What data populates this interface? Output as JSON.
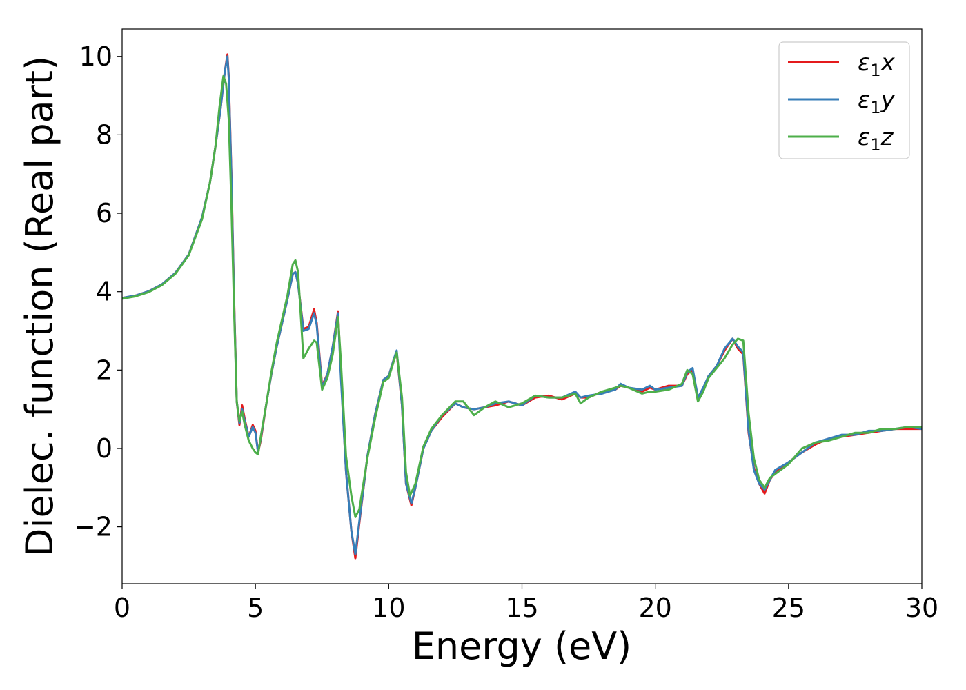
{
  "chart_data": {
    "type": "line",
    "xlabel": "Energy (eV)",
    "ylabel": "Dielec. function (Real part)",
    "xlim": [
      0,
      30
    ],
    "ylim": [
      -3.45,
      10.7
    ],
    "xticks": [
      0,
      5,
      10,
      15,
      20,
      25,
      30
    ],
    "xtick_labels": [
      "0",
      "5",
      "10",
      "15",
      "20",
      "25",
      "30"
    ],
    "yticks": [
      -2,
      0,
      2,
      4,
      6,
      8,
      10
    ],
    "ytick_labels": [
      "−2",
      "0",
      "2",
      "4",
      "6",
      "8",
      "10"
    ],
    "grid": false,
    "legend_position": "top-right",
    "series": [
      {
        "name": "ε₁x",
        "legend_base": "ε",
        "legend_sub": "1",
        "legend_suffix": "x",
        "color": "#e41a1c",
        "x": [
          0,
          0.5,
          1.0,
          1.5,
          2.0,
          2.5,
          3.0,
          3.3,
          3.5,
          3.7,
          3.85,
          3.95,
          4.0,
          4.1,
          4.2,
          4.3,
          4.4,
          4.5,
          4.6,
          4.75,
          4.9,
          5.0,
          5.1,
          5.2,
          5.4,
          5.6,
          5.8,
          6.0,
          6.2,
          6.4,
          6.5,
          6.6,
          6.8,
          7.0,
          7.2,
          7.3,
          7.5,
          7.7,
          7.9,
          8.1,
          8.2,
          8.4,
          8.6,
          8.75,
          8.9,
          9.2,
          9.5,
          9.8,
          10.0,
          10.2,
          10.3,
          10.5,
          10.65,
          10.85,
          11.0,
          11.3,
          11.6,
          12.0,
          12.5,
          12.8,
          13.2,
          13.6,
          14.0,
          14.5,
          15.0,
          15.5,
          16.0,
          16.5,
          17.0,
          17.2,
          17.5,
          18.0,
          18.5,
          18.7,
          19.0,
          19.5,
          19.8,
          20.0,
          20.5,
          21.0,
          21.2,
          21.4,
          21.6,
          21.8,
          22.0,
          22.3,
          22.6,
          22.9,
          23.1,
          23.3,
          23.5,
          23.7,
          23.9,
          24.1,
          24.3,
          24.5,
          25.0,
          25.5,
          26.0,
          26.5,
          27.0,
          27.5,
          28.0,
          28.5,
          29.0,
          29.5,
          30.0
        ],
        "y": [
          3.84,
          3.9,
          4.01,
          4.19,
          4.48,
          4.95,
          5.9,
          6.8,
          7.7,
          8.7,
          9.6,
          10.05,
          9.5,
          7.0,
          3.8,
          1.2,
          0.6,
          1.1,
          0.75,
          0.3,
          0.6,
          0.45,
          -0.1,
          0.2,
          1.1,
          1.9,
          2.6,
          3.2,
          3.8,
          4.45,
          4.5,
          4.2,
          3.05,
          3.1,
          3.55,
          3.2,
          1.6,
          1.9,
          2.6,
          3.5,
          2.0,
          -0.6,
          -2.1,
          -2.8,
          -1.9,
          -0.2,
          0.9,
          1.75,
          1.85,
          2.3,
          2.45,
          1.1,
          -0.9,
          -1.45,
          -1.0,
          0.0,
          0.45,
          0.8,
          1.15,
          1.05,
          1.0,
          1.05,
          1.1,
          1.2,
          1.1,
          1.3,
          1.35,
          1.25,
          1.4,
          1.3,
          1.3,
          1.45,
          1.5,
          1.6,
          1.55,
          1.45,
          1.55,
          1.5,
          1.6,
          1.6,
          1.9,
          2.0,
          1.3,
          1.5,
          1.85,
          2.1,
          2.5,
          2.8,
          2.55,
          2.4,
          0.4,
          -0.5,
          -0.9,
          -1.15,
          -0.8,
          -0.6,
          -0.35,
          -0.1,
          0.1,
          0.25,
          0.3,
          0.35,
          0.4,
          0.45,
          0.5,
          0.5,
          0.5
        ]
      },
      {
        "name": "ε₁y",
        "legend_base": "ε",
        "legend_sub": "1",
        "legend_suffix": "y",
        "color": "#377eb8",
        "x": [
          0,
          0.5,
          1.0,
          1.5,
          2.0,
          2.5,
          3.0,
          3.3,
          3.5,
          3.7,
          3.85,
          3.95,
          4.0,
          4.1,
          4.2,
          4.3,
          4.4,
          4.5,
          4.6,
          4.75,
          4.9,
          5.0,
          5.1,
          5.2,
          5.4,
          5.6,
          5.8,
          6.0,
          6.2,
          6.4,
          6.5,
          6.6,
          6.8,
          7.0,
          7.2,
          7.3,
          7.5,
          7.7,
          7.9,
          8.1,
          8.2,
          8.4,
          8.6,
          8.75,
          8.9,
          9.2,
          9.5,
          9.8,
          10.0,
          10.2,
          10.3,
          10.5,
          10.65,
          10.85,
          11.0,
          11.3,
          11.6,
          12.0,
          12.5,
          12.8,
          13.2,
          13.6,
          14.0,
          14.5,
          15.0,
          15.5,
          16.0,
          16.5,
          17.0,
          17.2,
          17.5,
          18.0,
          18.5,
          18.7,
          19.0,
          19.5,
          19.8,
          20.0,
          20.5,
          21.0,
          21.2,
          21.4,
          21.6,
          21.8,
          22.0,
          22.3,
          22.6,
          22.9,
          23.1,
          23.3,
          23.5,
          23.7,
          23.9,
          24.1,
          24.3,
          24.5,
          25.0,
          25.5,
          26.0,
          26.5,
          27.0,
          27.5,
          28.0,
          28.5,
          29.0,
          29.5,
          30.0
        ],
        "y": [
          3.84,
          3.9,
          4.01,
          4.19,
          4.48,
          4.95,
          5.9,
          6.8,
          7.7,
          8.7,
          9.6,
          10.0,
          9.45,
          6.9,
          3.7,
          1.2,
          0.65,
          1.0,
          0.7,
          0.3,
          0.55,
          0.4,
          -0.1,
          0.25,
          1.1,
          1.9,
          2.6,
          3.2,
          3.8,
          4.45,
          4.5,
          4.2,
          3.0,
          3.05,
          3.45,
          3.15,
          1.55,
          1.9,
          2.6,
          3.45,
          1.9,
          -0.6,
          -2.1,
          -2.7,
          -1.85,
          -0.2,
          0.9,
          1.75,
          1.85,
          2.3,
          2.5,
          1.1,
          -0.9,
          -1.4,
          -1.0,
          0.0,
          0.45,
          0.85,
          1.15,
          1.05,
          1.0,
          1.05,
          1.15,
          1.2,
          1.1,
          1.35,
          1.3,
          1.3,
          1.45,
          1.3,
          1.35,
          1.4,
          1.5,
          1.65,
          1.55,
          1.5,
          1.6,
          1.5,
          1.55,
          1.6,
          1.95,
          2.05,
          1.3,
          1.55,
          1.85,
          2.1,
          2.55,
          2.8,
          2.6,
          2.45,
          0.45,
          -0.55,
          -0.9,
          -1.05,
          -0.8,
          -0.55,
          -0.35,
          -0.1,
          0.15,
          0.25,
          0.35,
          0.35,
          0.45,
          0.45,
          0.5,
          0.55,
          0.5
        ]
      },
      {
        "name": "ε₁z",
        "legend_base": "ε",
        "legend_sub": "1",
        "legend_suffix": "z",
        "color": "#4daf4a",
        "x": [
          0,
          0.5,
          1.0,
          1.5,
          2.0,
          2.5,
          3.0,
          3.3,
          3.5,
          3.65,
          3.8,
          3.9,
          4.0,
          4.1,
          4.2,
          4.3,
          4.4,
          4.5,
          4.6,
          4.75,
          4.9,
          5.0,
          5.1,
          5.2,
          5.4,
          5.6,
          5.8,
          6.0,
          6.2,
          6.4,
          6.5,
          6.6,
          6.8,
          7.0,
          7.2,
          7.3,
          7.5,
          7.7,
          7.9,
          8.1,
          8.2,
          8.4,
          8.6,
          8.75,
          8.9,
          9.2,
          9.5,
          9.8,
          10.0,
          10.2,
          10.3,
          10.5,
          10.65,
          10.8,
          11.0,
          11.3,
          11.6,
          12.0,
          12.5,
          12.8,
          13.2,
          13.6,
          14.0,
          14.5,
          15.0,
          15.5,
          16.0,
          16.5,
          17.0,
          17.2,
          17.5,
          18.0,
          18.5,
          18.7,
          19.0,
          19.5,
          19.8,
          20.0,
          20.5,
          21.0,
          21.2,
          21.4,
          21.6,
          21.8,
          22.0,
          22.3,
          22.6,
          22.9,
          23.1,
          23.3,
          23.5,
          23.7,
          23.9,
          24.1,
          24.3,
          24.5,
          25.0,
          25.5,
          26.0,
          26.5,
          27.0,
          27.5,
          28.0,
          28.5,
          29.0,
          29.5,
          30.0
        ],
        "y": [
          3.82,
          3.88,
          3.99,
          4.17,
          4.46,
          4.93,
          5.85,
          6.8,
          7.7,
          8.7,
          9.5,
          9.3,
          8.4,
          6.2,
          3.5,
          1.2,
          0.7,
          0.95,
          0.6,
          0.2,
          0.0,
          -0.1,
          -0.15,
          0.3,
          1.1,
          1.95,
          2.7,
          3.3,
          3.9,
          4.7,
          4.8,
          4.5,
          2.3,
          2.55,
          2.75,
          2.7,
          1.5,
          1.8,
          2.4,
          3.35,
          2.3,
          -0.2,
          -1.2,
          -1.75,
          -1.55,
          -0.25,
          0.8,
          1.7,
          1.8,
          2.25,
          2.45,
          1.3,
          -0.6,
          -1.2,
          -0.9,
          0.05,
          0.5,
          0.85,
          1.2,
          1.2,
          0.85,
          1.05,
          1.2,
          1.05,
          1.15,
          1.35,
          1.3,
          1.3,
          1.4,
          1.15,
          1.3,
          1.45,
          1.55,
          1.6,
          1.55,
          1.4,
          1.45,
          1.45,
          1.5,
          1.65,
          2.0,
          1.9,
          1.2,
          1.45,
          1.8,
          2.05,
          2.3,
          2.65,
          2.8,
          2.75,
          0.9,
          -0.25,
          -0.8,
          -1.0,
          -0.75,
          -0.65,
          -0.4,
          0.0,
          0.15,
          0.2,
          0.3,
          0.4,
          0.4,
          0.5,
          0.5,
          0.55,
          0.55
        ]
      }
    ]
  }
}
